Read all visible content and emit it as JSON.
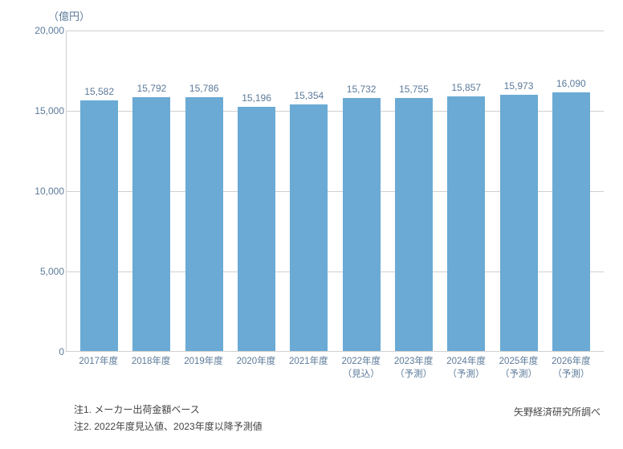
{
  "chart": {
    "type": "bar",
    "y_unit_label": "（億円）",
    "ylim": [
      0,
      20000
    ],
    "ytick_step": 5000,
    "yticks": [
      0,
      5000,
      10000,
      15000,
      20000
    ],
    "ytick_labels": [
      "0",
      "5,000",
      "10,000",
      "15,000",
      "20,000"
    ],
    "categories": [
      {
        "main": "2017年度",
        "sub": ""
      },
      {
        "main": "2018年度",
        "sub": ""
      },
      {
        "main": "2019年度",
        "sub": ""
      },
      {
        "main": "2020年度",
        "sub": ""
      },
      {
        "main": "2021年度",
        "sub": ""
      },
      {
        "main": "2022年度",
        "sub": "（見込）"
      },
      {
        "main": "2023年度",
        "sub": "（予測）"
      },
      {
        "main": "2024年度",
        "sub": "（予測）"
      },
      {
        "main": "2025年度",
        "sub": "（予測）"
      },
      {
        "main": "2026年度",
        "sub": "（予測）"
      }
    ],
    "values": [
      15582,
      15792,
      15786,
      15196,
      15354,
      15732,
      15755,
      15857,
      15973,
      16090
    ],
    "value_labels": [
      "15,582",
      "15,792",
      "15,786",
      "15,196",
      "15,354",
      "15,732",
      "15,755",
      "15,857",
      "15,973",
      "16,090"
    ],
    "bar_color": "#6aaad4",
    "grid_color": "#d0d0d0",
    "axis_color": "#d0d0d0",
    "background_color": "#ffffff",
    "text_color": "#5b7a9a",
    "label_fontsize": 12,
    "value_fontsize": 12,
    "bar_width_ratio": 0.72
  },
  "notes": {
    "line1": "注1. メーカー出荷金額ベース",
    "line2": "注2. 2022年度見込値、2023年度以降予測値"
  },
  "source": "矢野経済研究所調べ"
}
